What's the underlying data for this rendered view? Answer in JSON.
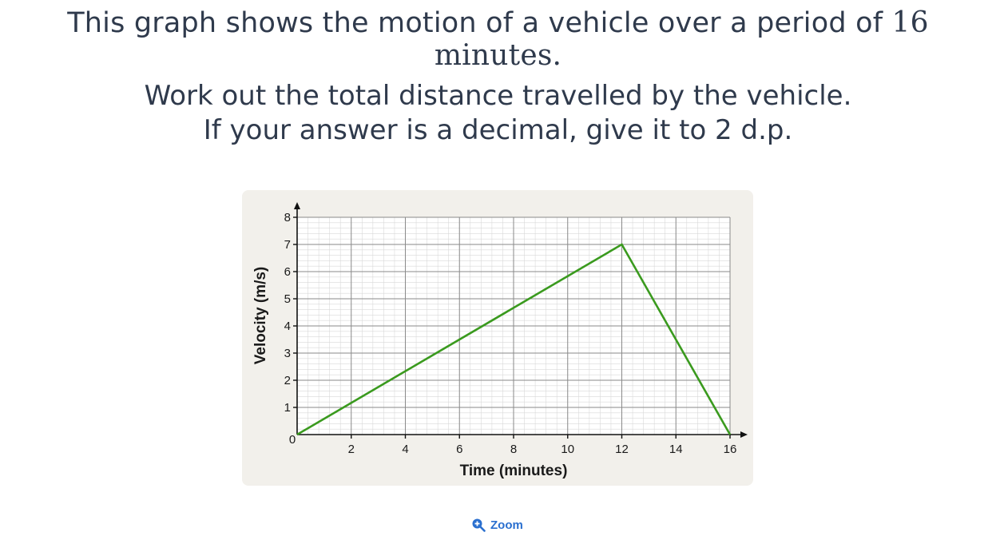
{
  "question": {
    "line1_text": "This graph shows the motion of a vehicle over a period of ",
    "line1_math": "16 minutes.",
    "line2": "Work out the total distance travelled by the vehicle.",
    "line3": "If your answer is a decimal, give it to 2 d.p."
  },
  "zoom": {
    "label": "Zoom",
    "icon": "zoom-in-icon"
  },
  "chart_data": {
    "type": "line",
    "title": "",
    "xlabel": "Time (minutes)",
    "ylabel": "Velocity (m/s)",
    "xlim": [
      0,
      16
    ],
    "ylim": [
      0,
      8
    ],
    "x_ticks": [
      "0",
      "2",
      "4",
      "6",
      "8",
      "10",
      "12",
      "14",
      "16"
    ],
    "y_ticks": [
      "1",
      "2",
      "3",
      "4",
      "5",
      "6",
      "7",
      "8"
    ],
    "grid": true,
    "series": [
      {
        "x": [
          0,
          12,
          16
        ],
        "y": [
          0,
          7,
          0
        ],
        "color": "#3a9a1e"
      }
    ]
  }
}
